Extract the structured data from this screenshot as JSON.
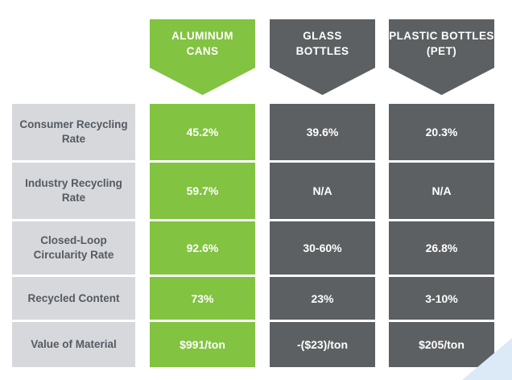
{
  "colors": {
    "aluminum": "#82c341",
    "dark": "#5d6062",
    "label_bg": "#d6d8dc",
    "label_text": "#555a61",
    "corner_accent": "#dce9f6"
  },
  "chart_data": {
    "type": "table",
    "columns": [
      {
        "lines": [
          "ALUMINUM",
          "CANS"
        ]
      },
      {
        "lines": [
          "GLASS",
          "BOTTLES"
        ]
      },
      {
        "lines": [
          "PLASTIC BOTTLES",
          "(PET)"
        ]
      }
    ],
    "rows": [
      {
        "label": [
          "Consumer Recycling",
          "Rate"
        ],
        "values": [
          "45.2%",
          "39.6%",
          "20.3%"
        ]
      },
      {
        "label": [
          "Industry Recycling",
          "Rate"
        ],
        "values": [
          "59.7%",
          "N/A",
          "N/A"
        ]
      },
      {
        "label": [
          "Closed-Loop",
          "Circularity Rate"
        ],
        "values": [
          "92.6%",
          "30-60%",
          "26.8%"
        ]
      },
      {
        "label": [
          "Recycled Content"
        ],
        "values": [
          "73%",
          "23%",
          "3-10%"
        ]
      },
      {
        "label": [
          "Value of Material"
        ],
        "values": [
          "$991/ton",
          "-($23)/ton",
          "$205/ton"
        ]
      }
    ]
  }
}
